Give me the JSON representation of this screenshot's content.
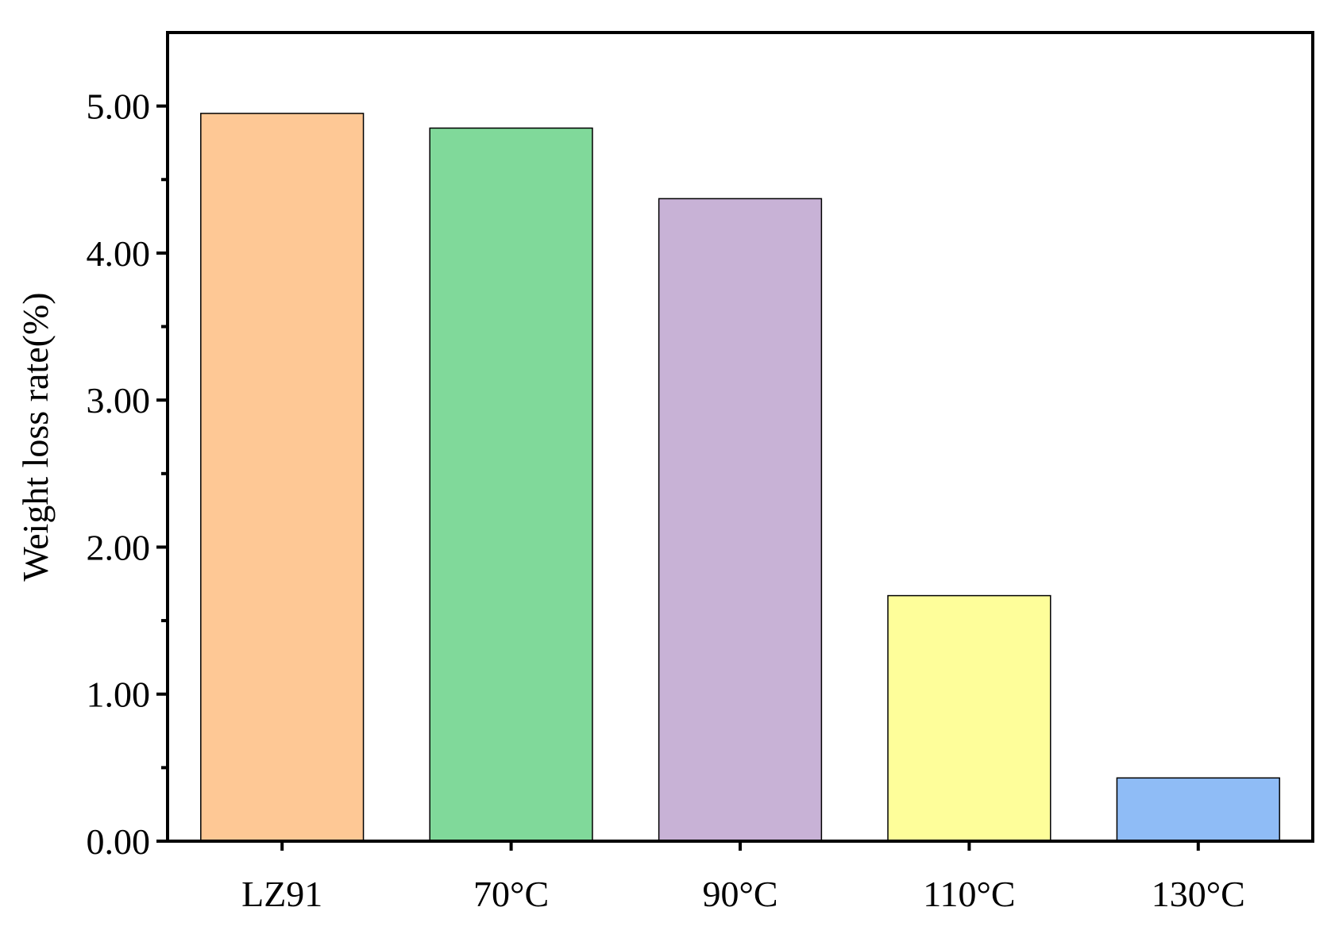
{
  "chart_data": {
    "type": "bar",
    "title": "",
    "xlabel": "",
    "ylabel": "Weight loss rate(%)",
    "categories": [
      "LZ91",
      "70°C",
      "90°C",
      "110°C",
      "130°C"
    ],
    "values": [
      4.95,
      4.85,
      4.37,
      1.67,
      0.43
    ],
    "colors": [
      "#FEC895",
      "#80D99A",
      "#C8B2D6",
      "#FEFE9A",
      "#8FBCF6"
    ],
    "ylim": [
      0,
      5.5
    ],
    "yticks": [
      0,
      1,
      2,
      3,
      4,
      5
    ],
    "ytick_labels": [
      "0.00",
      "1.00",
      "2.00",
      "3.00",
      "4.00",
      "5.00"
    ],
    "minor_yticks": [
      0.5,
      1.5,
      2.5,
      3.5,
      4.5
    ],
    "grid": false,
    "legend": "none"
  }
}
